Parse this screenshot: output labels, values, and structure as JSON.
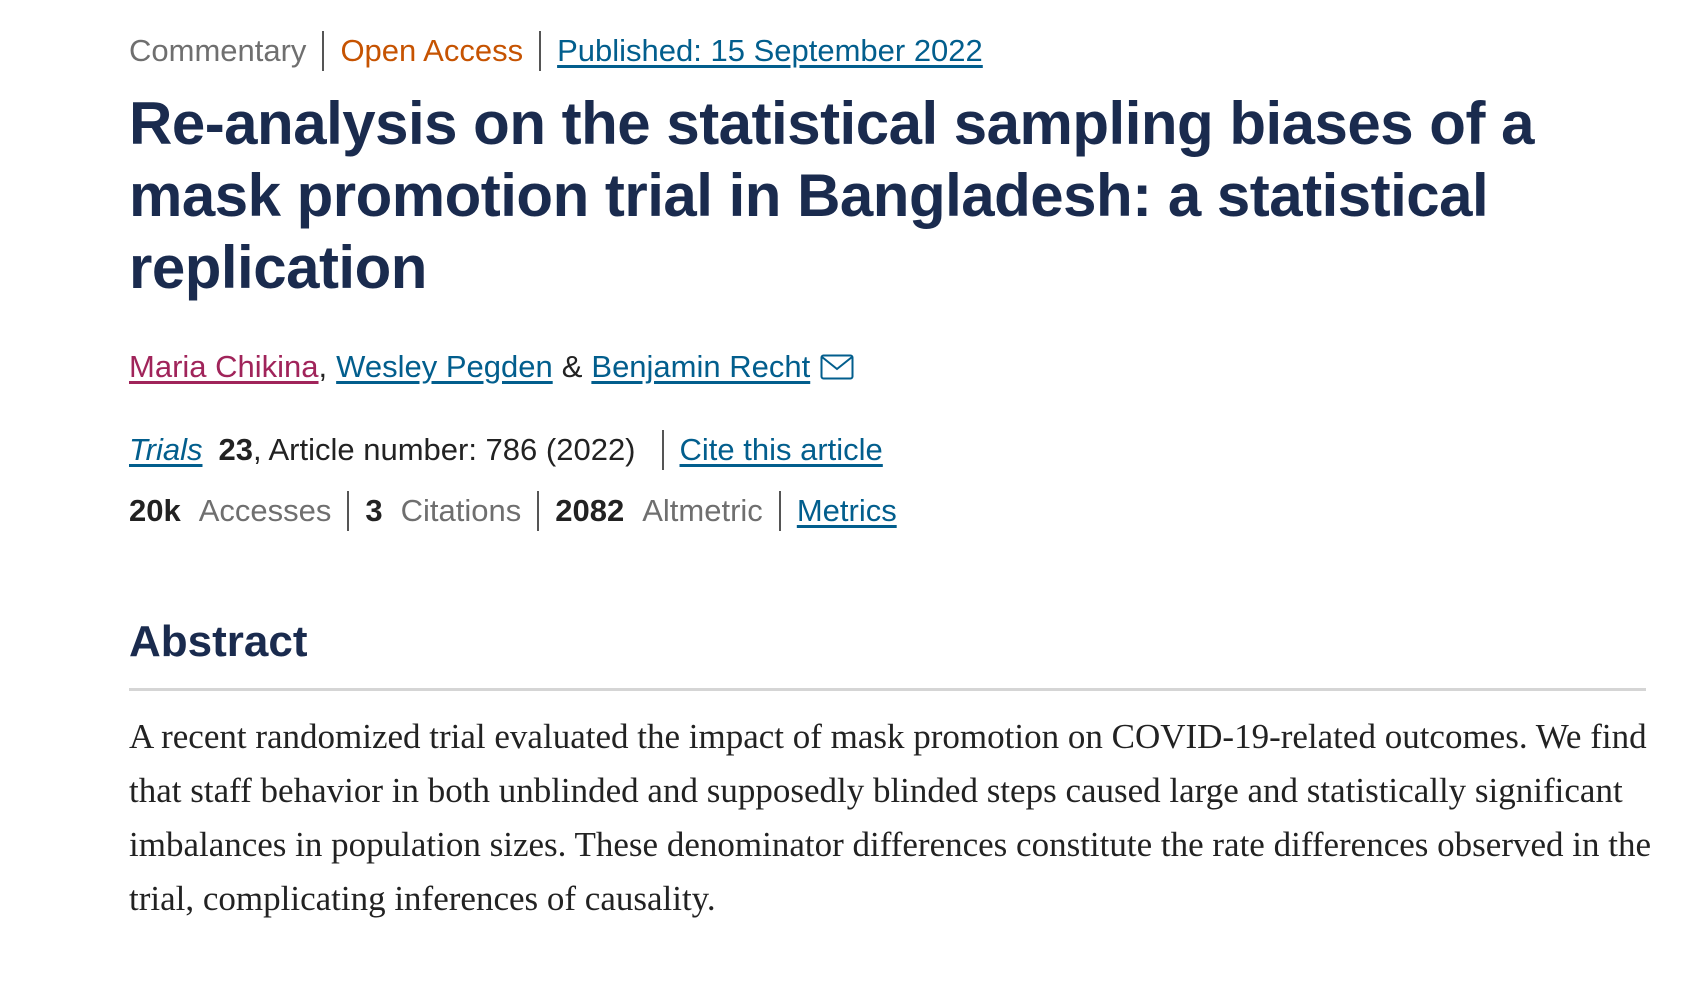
{
  "meta": {
    "article_type": "Commentary",
    "access": "Open Access",
    "published": "Published: 15 September 2022"
  },
  "title": "Re-analysis on the statistical sampling biases of a mask promotion trial in Bangladesh: a statistical replication",
  "authors": {
    "list": [
      {
        "name": "Maria Chikina"
      },
      {
        "name": "Wesley Pegden"
      },
      {
        "name": "Benjamin Recht"
      }
    ],
    "comma": ",",
    "ampersand": "&",
    "contact_icon": "mail-icon"
  },
  "journal": {
    "name": "Trials",
    "volume": "23",
    "article_info": ", Article number: 786 (2022)",
    "cite_label": "Cite this article"
  },
  "metrics": {
    "accesses_value": "20k",
    "accesses_label": "Accesses",
    "citations_value": "3",
    "citations_label": "Citations",
    "altmetric_value": "2082",
    "altmetric_label": "Altmetric",
    "metrics_link": "Metrics"
  },
  "abstract": {
    "heading": "Abstract",
    "text": "A recent randomized trial evaluated the impact of mask promotion on COVID-19-related outcomes. We find that staff behavior in both unblinded and supposedly blinded steps caused large and statistically significant imbalances in population sizes. These denominator differences constitute the rate differences observed in the trial, complicating inferences of causality."
  },
  "colors": {
    "heading": "#1a2b4e",
    "link": "#025e8d",
    "visited_link": "#a0245a",
    "open_access": "#c65301",
    "muted": "#6f6f6f",
    "rule": "#d5d5d5"
  }
}
